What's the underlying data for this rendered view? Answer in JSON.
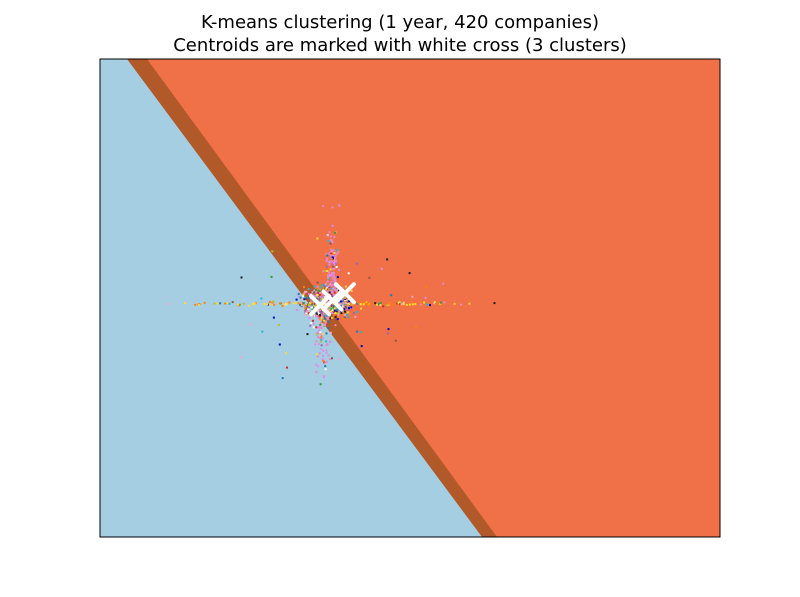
{
  "chart_data": {
    "type": "scatter",
    "title": "K-means clustering (1 year, 420 companies)",
    "subtitle": "Centroids are marked with white cross (3 clusters)",
    "xlabel": "",
    "ylabel": "",
    "xticks": "none",
    "yticks": "none",
    "xlim": [
      -1.0,
      1.0
    ],
    "ylim": [
      -1.0,
      1.0
    ],
    "grid": false,
    "n_clusters": 3,
    "n_companies": 420,
    "regions": [
      {
        "cluster": 1,
        "color": "#a6cee3",
        "description": "lower-left region"
      },
      {
        "cluster": 2,
        "color": "#b15928",
        "description": "narrow diagonal band"
      },
      {
        "cluster": 3,
        "color": "#f07048",
        "description": "upper-right region"
      }
    ],
    "centroids": [
      {
        "x": -0.29,
        "y": -0.03
      },
      {
        "x": -0.25,
        "y": -0.01
      },
      {
        "x": -0.21,
        "y": 0.02
      }
    ],
    "centroid_marker": {
      "shape": "x",
      "color": "#ffffff"
    },
    "point_colors": [
      "#e78ac3",
      "#d98cf2",
      "#8c564b",
      "#1f1f1f",
      "#ff7f0e",
      "#ffd92f",
      "#1f77b4",
      "#17becf",
      "#2ca02c",
      "#d62728",
      "#9467bd",
      "#ffffff",
      "#bcbd22",
      "#f5a3c7",
      "#0000cc"
    ]
  },
  "colors": {
    "region_low": "#a6cee3",
    "region_band": "#b15928",
    "region_high": "#f07048",
    "centroid": "#ffffff",
    "frame": "#000000"
  }
}
